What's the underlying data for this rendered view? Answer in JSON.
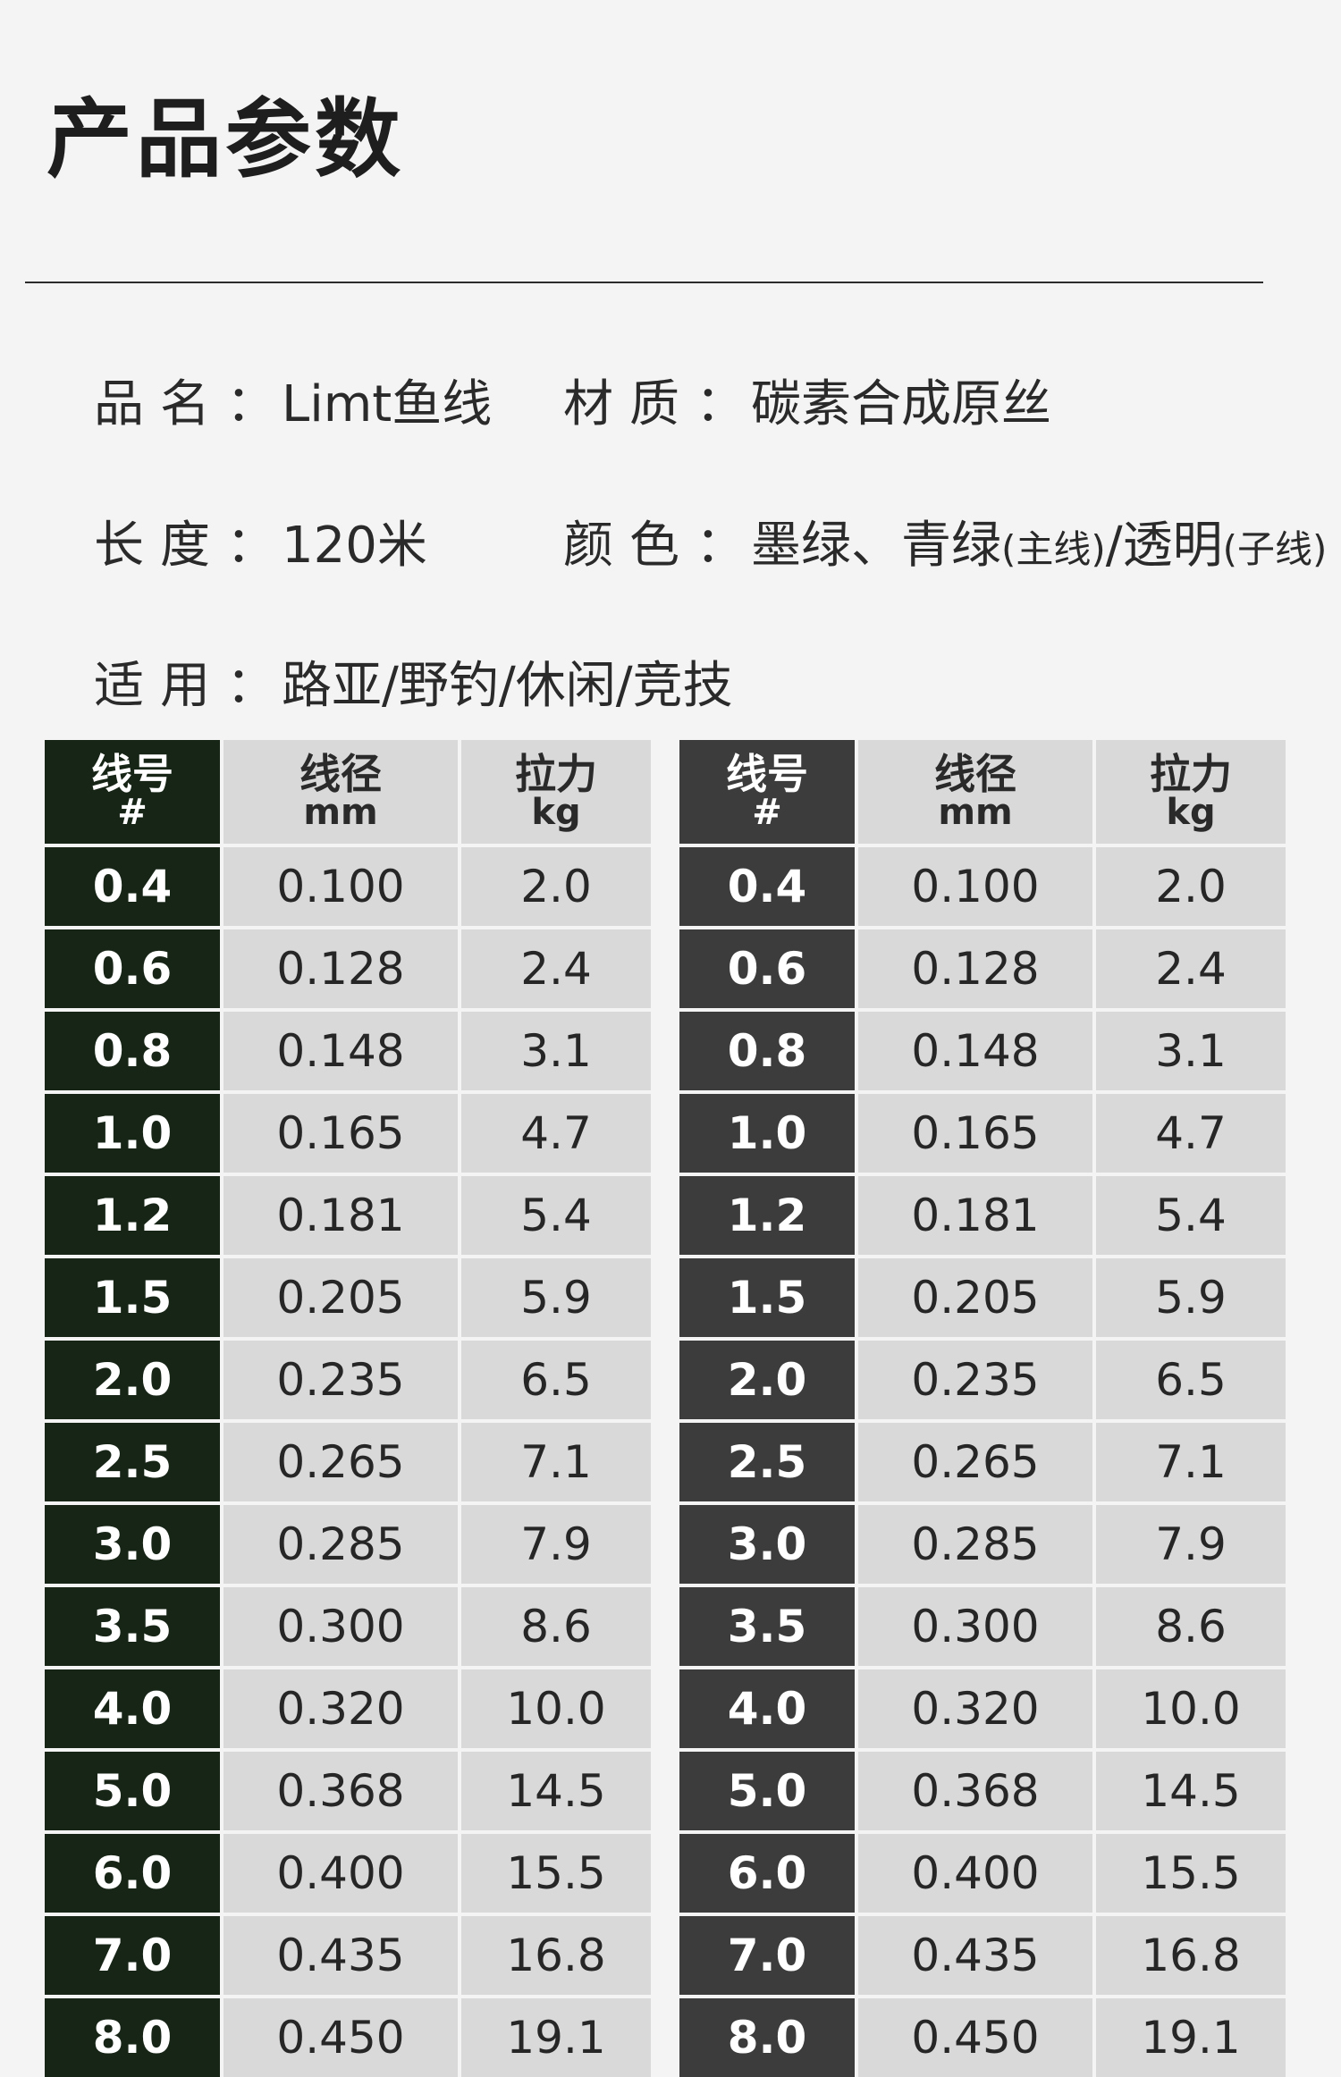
{
  "title": "产品参数",
  "specs": {
    "name": {
      "label": "品名",
      "value": "Limt鱼线"
    },
    "material": {
      "label": "材质",
      "value": "碳素合成原丝"
    },
    "length": {
      "label": "长度",
      "value": "120米"
    },
    "color": {
      "label": "颜色",
      "main_colors": "墨绿、青绿",
      "main_note": "(主线)",
      "separator": "/透明",
      "sub_note": "(子线)"
    },
    "usage": {
      "label": "适用",
      "value": "路亚/野钓/休闲/竞技"
    }
  },
  "colon": "：",
  "table_headers": [
    {
      "name": "线号",
      "unit": "#"
    },
    {
      "name": "线径",
      "unit": "mm"
    },
    {
      "name": "拉力",
      "unit": "kg"
    }
  ],
  "rows": [
    [
      "0.4",
      "0.100",
      "2.0"
    ],
    [
      "0.6",
      "0.128",
      "2.4"
    ],
    [
      "0.8",
      "0.148",
      "3.1"
    ],
    [
      "1.0",
      "0.165",
      "4.7"
    ],
    [
      "1.2",
      "0.181",
      "5.4"
    ],
    [
      "1.5",
      "0.205",
      "5.9"
    ],
    [
      "2.0",
      "0.235",
      "6.5"
    ],
    [
      "2.5",
      "0.265",
      "7.1"
    ],
    [
      "3.0",
      "0.285",
      "7.9"
    ],
    [
      "3.5",
      "0.300",
      "8.6"
    ],
    [
      "4.0",
      "0.320",
      "10.0"
    ],
    [
      "5.0",
      "0.368",
      "14.5"
    ],
    [
      "6.0",
      "0.400",
      "15.5"
    ],
    [
      "7.0",
      "0.435",
      "16.8"
    ],
    [
      "8.0",
      "0.450",
      "19.1"
    ]
  ],
  "colors": {
    "left_first_column": "#172517",
    "right_first_column": "#3c3c3c",
    "cell_background": "#d9d9d9"
  }
}
